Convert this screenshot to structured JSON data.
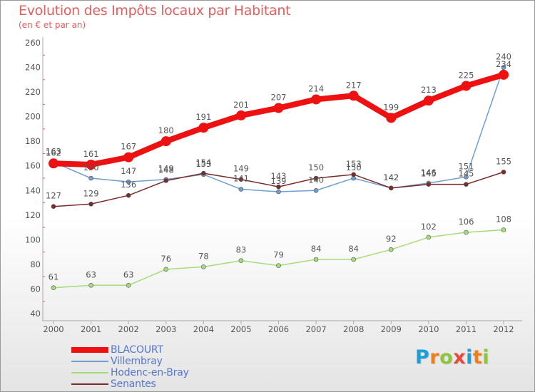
{
  "title": "Evolution des Impôts locaux par Habitant",
  "subtitle": "(en € et par an)",
  "logo": {
    "text": "Proxiti",
    "colors": [
      "#1a9fd9",
      "#f07f1a",
      "#8cc63f",
      "#e84b3c",
      "#1a9fd9",
      "#f07f1a",
      "#8cc63f"
    ]
  },
  "chart_data": {
    "type": "line",
    "title": "Evolution des Impôts locaux par Habitant",
    "subtitle": "(en € et par an)",
    "xlabel": "",
    "ylabel": "",
    "ylim": [
      40,
      260
    ],
    "yticks": [
      40,
      60,
      80,
      100,
      120,
      140,
      160,
      180,
      200,
      220,
      240,
      260
    ],
    "grid": false,
    "legend_position": "bottom-left",
    "x": [
      "2000",
      "2001",
      "2002",
      "2003",
      "2004",
      "2005",
      "2006",
      "2007",
      "2008",
      "2009",
      "2010",
      "2011",
      "2012"
    ],
    "series": [
      {
        "name": "BLACOURT",
        "color": "#ee1111",
        "width": 8,
        "marker": 7,
        "values": [
          162,
          161,
          167,
          180,
          191,
          201,
          207,
          214,
          217,
          199,
          213,
          225,
          234
        ]
      },
      {
        "name": "Villembray",
        "color": "#6f9ed3",
        "width": 1.5,
        "marker": 3,
        "values": [
          163,
          150,
          147,
          149,
          153,
          141,
          139,
          140,
          150,
          142,
          146,
          151,
          240
        ]
      },
      {
        "name": "Hodenc-en-Bray",
        "color": "#a6dc7a",
        "width": 1.5,
        "marker": 3,
        "values": [
          61,
          63,
          63,
          76,
          78,
          83,
          79,
          84,
          84,
          92,
          102,
          106,
          108
        ]
      },
      {
        "name": "Senantes",
        "color": "#7b2a2a",
        "width": 1.5,
        "marker": 3,
        "values": [
          127,
          129,
          136,
          148,
          154,
          149,
          143,
          150,
          153,
          142,
          145,
          145,
          155
        ]
      }
    ]
  }
}
